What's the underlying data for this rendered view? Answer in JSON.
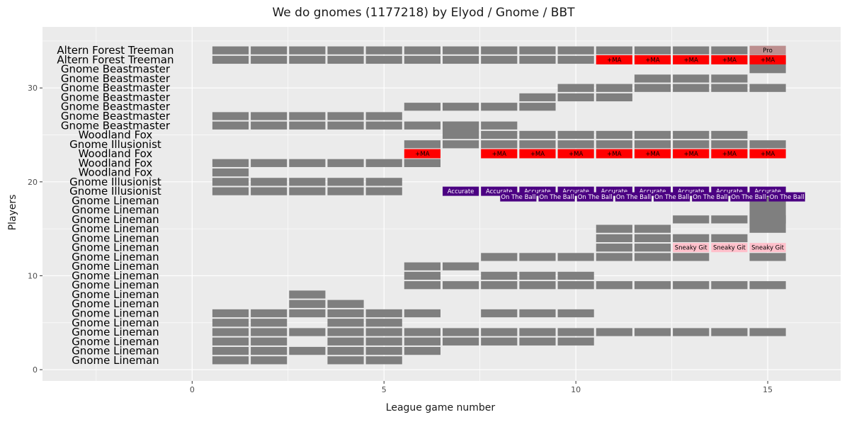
{
  "chart_data": {
    "type": "tile",
    "title": "We do gnomes (1177218) by Elyod / Gnome / BBT",
    "xlabel": "League game number",
    "ylabel": "Players",
    "xlim": [
      -3.9,
      16.9
    ],
    "ylim": [
      -1.2,
      36.5
    ],
    "xticks": [
      0,
      5,
      10,
      15
    ],
    "yticks": [
      0,
      10,
      20,
      30
    ],
    "grid": true,
    "colors": {
      "panel": "#ebebeb",
      "grid": "#ffffff",
      "tile": "#7f7f7f",
      "skill_ma": "#ff0000",
      "skill_accurate": "#4b0082",
      "skill_ontheball": "#4b0082",
      "skill_sneakygit": "#ffc0cb",
      "skill_pro": "#bc8f8f"
    },
    "players": [
      {
        "y": 34,
        "name": "Altern Forest Treeman"
      },
      {
        "y": 33,
        "name": "Altern Forest Treeman"
      },
      {
        "y": 32,
        "name": "Gnome Beastmaster"
      },
      {
        "y": 31,
        "name": "Gnome Beastmaster"
      },
      {
        "y": 30,
        "name": "Gnome Beastmaster"
      },
      {
        "y": 29,
        "name": "Gnome Beastmaster"
      },
      {
        "y": 28,
        "name": "Gnome Beastmaster"
      },
      {
        "y": 27,
        "name": "Gnome Beastmaster"
      },
      {
        "y": 26,
        "name": "Gnome Beastmaster"
      },
      {
        "y": 25,
        "name": "Woodland Fox"
      },
      {
        "y": 24,
        "name": "Gnome Illusionist"
      },
      {
        "y": 23,
        "name": "Woodland Fox"
      },
      {
        "y": 22,
        "name": "Woodland Fox"
      },
      {
        "y": 21,
        "name": "Woodland Fox"
      },
      {
        "y": 20,
        "name": "Gnome Illusionist"
      },
      {
        "y": 19,
        "name": "Gnome Illusionist"
      },
      {
        "y": 18,
        "name": "Gnome Lineman"
      },
      {
        "y": 17,
        "name": "Gnome Lineman"
      },
      {
        "y": 16,
        "name": "Gnome Lineman"
      },
      {
        "y": 15,
        "name": "Gnome Lineman"
      },
      {
        "y": 14,
        "name": "Gnome Lineman"
      },
      {
        "y": 13,
        "name": "Gnome Lineman"
      },
      {
        "y": 12,
        "name": "Gnome Lineman"
      },
      {
        "y": 11,
        "name": "Gnome Lineman"
      },
      {
        "y": 10,
        "name": "Gnome Lineman"
      },
      {
        "y": 9,
        "name": "Gnome Lineman"
      },
      {
        "y": 8,
        "name": "Gnome Lineman"
      },
      {
        "y": 7,
        "name": "Gnome Lineman"
      },
      {
        "y": 6,
        "name": "Gnome Lineman"
      },
      {
        "y": 5,
        "name": "Gnome Lineman"
      },
      {
        "y": 4,
        "name": "Gnome Lineman"
      },
      {
        "y": 3,
        "name": "Gnome Lineman"
      },
      {
        "y": 2,
        "name": "Gnome Lineman"
      },
      {
        "y": 1,
        "name": "Gnome Lineman"
      }
    ],
    "games": [
      {
        "y": 34,
        "x": [
          1,
          2,
          3,
          4,
          5,
          6,
          7,
          8,
          9,
          10,
          11,
          12,
          13,
          14
        ]
      },
      {
        "y": 33,
        "x": [
          1,
          2,
          3,
          4,
          5,
          6,
          7,
          8,
          9,
          10
        ]
      },
      {
        "y": 31,
        "x": [
          12,
          13,
          14
        ]
      },
      {
        "y": 30,
        "x": [
          10,
          11,
          12,
          13,
          14,
          15
        ]
      },
      {
        "y": 29,
        "x": [
          9,
          10,
          11
        ]
      },
      {
        "y": 28,
        "x": [
          6,
          7,
          8,
          9
        ]
      },
      {
        "y": 27,
        "x": [
          1,
          2,
          3,
          4,
          5
        ]
      },
      {
        "y": 26,
        "x": [
          1,
          2,
          3,
          4,
          5,
          6,
          7,
          8
        ]
      },
      {
        "y": 25,
        "x": [
          7,
          8,
          9,
          10,
          11,
          12,
          13,
          14
        ]
      },
      {
        "y": 24,
        "x": [
          6,
          7,
          8,
          9,
          10,
          11,
          12,
          13,
          14,
          15
        ]
      },
      {
        "y": 22,
        "x": [
          1,
          2,
          3,
          4,
          5,
          6
        ]
      },
      {
        "y": 21,
        "x": [
          1
        ]
      },
      {
        "y": 20,
        "x": [
          1,
          2,
          3,
          4,
          5
        ]
      },
      {
        "y": 19,
        "x": [
          1,
          2,
          3,
          4,
          5
        ]
      },
      {
        "y": 16,
        "x": [
          13,
          14,
          15
        ]
      },
      {
        "y": 15,
        "x": [
          11,
          12
        ]
      },
      {
        "y": 14,
        "x": [
          11,
          12,
          13,
          14
        ]
      },
      {
        "y": 13,
        "x": [
          11,
          12
        ]
      },
      {
        "y": 12,
        "x": [
          8,
          9,
          10,
          11,
          12,
          13,
          15
        ]
      },
      {
        "y": 11,
        "x": [
          6,
          7
        ]
      },
      {
        "y": 10,
        "x": [
          6,
          8,
          9,
          10
        ]
      },
      {
        "y": 9,
        "x": [
          6,
          7,
          8,
          9,
          10,
          11,
          12,
          13,
          14,
          15
        ]
      },
      {
        "y": 8,
        "x": [
          3
        ]
      },
      {
        "y": 7,
        "x": [
          3,
          4
        ]
      },
      {
        "y": 6,
        "x": [
          1,
          2,
          3,
          4,
          5,
          6,
          8,
          9,
          10
        ]
      },
      {
        "y": 5,
        "x": [
          1,
          2,
          4,
          5
        ]
      },
      {
        "y": 4,
        "x": [
          1,
          2,
          3,
          4,
          5,
          6,
          7,
          8,
          9,
          10,
          11,
          12,
          13,
          14,
          15
        ]
      },
      {
        "y": 3,
        "x": [
          1,
          2,
          4,
          5,
          6,
          7,
          8,
          9,
          10
        ]
      },
      {
        "y": 2,
        "x": [
          1,
          2,
          3,
          4,
          5,
          6
        ]
      },
      {
        "y": 1,
        "x": [
          1,
          2,
          4,
          5
        ]
      }
    ],
    "extra_tiles": [
      {
        "x": 15,
        "y0": 31.5,
        "y1": 33.5
      },
      {
        "x": 7,
        "y0": 24.5,
        "y1": 26.5
      },
      {
        "x": 6,
        "y0": 21.5,
        "y1": 22.5
      },
      {
        "x": 15,
        "y0": 14.5,
        "y1": 18.5
      }
    ],
    "skills": [
      {
        "y": 34,
        "x": 15,
        "label": "Pro",
        "color": "#bc8f8f"
      },
      {
        "y": 33,
        "x": 11,
        "label": "+MA",
        "color": "#ff0000"
      },
      {
        "y": 33,
        "x": 12,
        "label": "+MA",
        "color": "#ff0000"
      },
      {
        "y": 33,
        "x": 13,
        "label": "+MA",
        "color": "#ff0000"
      },
      {
        "y": 33,
        "x": 14,
        "label": "+MA",
        "color": "#ff0000"
      },
      {
        "y": 33,
        "x": 15,
        "label": "+MA",
        "color": "#ff0000"
      },
      {
        "y": 23,
        "x": 6,
        "label": "+MA",
        "color": "#ff0000"
      },
      {
        "y": 23,
        "x": 8,
        "label": "+MA",
        "color": "#ff0000"
      },
      {
        "y": 23,
        "x": 9,
        "label": "+MA",
        "color": "#ff0000"
      },
      {
        "y": 23,
        "x": 10,
        "label": "+MA",
        "color": "#ff0000"
      },
      {
        "y": 23,
        "x": 11,
        "label": "+MA",
        "color": "#ff0000"
      },
      {
        "y": 23,
        "x": 12,
        "label": "+MA",
        "color": "#ff0000"
      },
      {
        "y": 23,
        "x": 13,
        "label": "+MA",
        "color": "#ff0000"
      },
      {
        "y": 23,
        "x": 14,
        "label": "+MA",
        "color": "#ff0000"
      },
      {
        "y": 23,
        "x": 15,
        "label": "+MA",
        "color": "#ff0000"
      },
      {
        "y": 19,
        "x": 7,
        "label": "Accurate",
        "color": "#4b0082"
      },
      {
        "y": 19,
        "x": 8,
        "label": "Accurate",
        "color": "#4b0082"
      },
      {
        "y": 19,
        "x": 9,
        "label": "Accurate",
        "color": "#4b0082"
      },
      {
        "y": 19,
        "x": 10,
        "label": "Accurate",
        "color": "#4b0082"
      },
      {
        "y": 19,
        "x": 11,
        "label": "Accurate",
        "color": "#4b0082"
      },
      {
        "y": 19,
        "x": 12,
        "label": "Accurate",
        "color": "#4b0082"
      },
      {
        "y": 19,
        "x": 13,
        "label": "Accurate",
        "color": "#4b0082"
      },
      {
        "y": 19,
        "x": 14,
        "label": "Accurate",
        "color": "#4b0082"
      },
      {
        "y": 19,
        "x": 15,
        "label": "Accurate",
        "color": "#4b0082"
      },
      {
        "y": 18.4,
        "x": 8.5,
        "label": "On The Ball",
        "color": "#4b0082"
      },
      {
        "y": 18.4,
        "x": 9.5,
        "label": "On The Ball",
        "color": "#4b0082"
      },
      {
        "y": 18.4,
        "x": 10.5,
        "label": "On The Ball",
        "color": "#4b0082"
      },
      {
        "y": 18.4,
        "x": 11.5,
        "label": "On The Ball",
        "color": "#4b0082"
      },
      {
        "y": 18.4,
        "x": 12.5,
        "label": "On The Ball",
        "color": "#4b0082"
      },
      {
        "y": 18.4,
        "x": 13.5,
        "label": "On The Ball",
        "color": "#4b0082"
      },
      {
        "y": 18.4,
        "x": 14.5,
        "label": "On The Ball",
        "color": "#4b0082"
      },
      {
        "y": 18.4,
        "x": 15.5,
        "label": "On The Ball",
        "color": "#4b0082"
      },
      {
        "y": 13,
        "x": 13,
        "label": "Sneaky Git",
        "color": "#ffc0cb"
      },
      {
        "y": 13,
        "x": 14,
        "label": "Sneaky Git",
        "color": "#ffc0cb"
      },
      {
        "y": 13,
        "x": 15,
        "label": "Sneaky Git",
        "color": "#ffc0cb"
      }
    ]
  }
}
